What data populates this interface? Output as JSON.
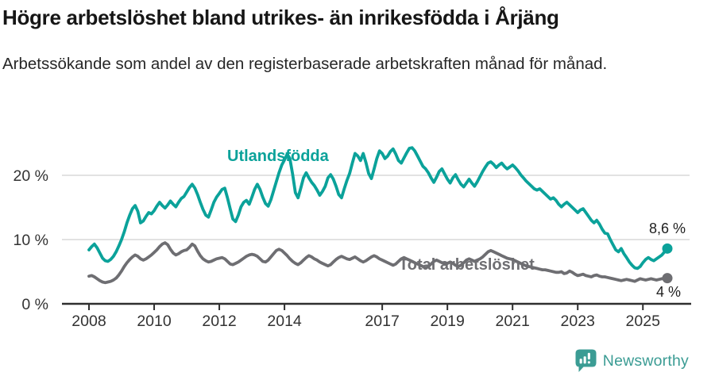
{
  "chart_data": {
    "type": "line",
    "title": "Högre arbetslöshet bland utrikes- än inrikesfödda i Årjäng",
    "subtitle": "Arbetssökande som andel av den registerbaserade arbetskraften månad för månad.",
    "unit": "%",
    "x_start": "2008-01",
    "x_end": "2025-10",
    "x_frequency": "monthly",
    "ylim": [
      0,
      26
    ],
    "y_ticks": [
      0,
      10,
      20
    ],
    "y_tick_labels": [
      "0 %",
      "10 %",
      "20 %"
    ],
    "x_tick_years": [
      2008,
      2010,
      2012,
      2014,
      2017,
      2019,
      2021,
      2023,
      2025
    ],
    "grid": "horizontal-only",
    "legend": "inline-series-labels",
    "axis_color": "#2f2f2f",
    "gridline_color": "#d8d8d8",
    "tick_label_color": "#333333",
    "series": [
      {
        "name": "Utlandsfödda",
        "color": "#0ba29a",
        "end_label": "8,6 %",
        "end_value": 8.6,
        "values": [
          8.4,
          8.9,
          9.3,
          8.7,
          7.9,
          7.1,
          6.7,
          6.6,
          6.9,
          7.4,
          8.1,
          9.0,
          10.0,
          11.2,
          12.6,
          13.8,
          14.8,
          15.3,
          14.4,
          12.6,
          12.9,
          13.6,
          14.2,
          14.0,
          14.5,
          15.2,
          15.8,
          15.3,
          14.9,
          15.4,
          16.0,
          15.5,
          15.1,
          15.8,
          16.4,
          16.7,
          17.4,
          18.1,
          18.6,
          18.0,
          17.0,
          15.8,
          14.7,
          13.8,
          13.5,
          14.6,
          15.8,
          16.6,
          17.2,
          17.8,
          18.0,
          16.5,
          14.8,
          13.2,
          12.8,
          13.8,
          15.1,
          15.8,
          16.1,
          15.5,
          16.6,
          17.8,
          18.6,
          17.8,
          16.6,
          15.6,
          15.2,
          16.2,
          17.6,
          19.0,
          20.4,
          21.6,
          22.4,
          23.3,
          22.6,
          20.2,
          17.3,
          16.5,
          18.0,
          19.6,
          20.4,
          19.6,
          18.9,
          18.4,
          17.7,
          16.9,
          17.5,
          18.3,
          19.6,
          20.1,
          19.4,
          18.3,
          17.0,
          16.5,
          17.9,
          19.2,
          20.3,
          21.9,
          23.4,
          23.0,
          22.3,
          23.4,
          22.0,
          20.3,
          19.5,
          21.0,
          22.6,
          23.8,
          23.4,
          22.6,
          23.0,
          23.7,
          24.1,
          23.3,
          22.3,
          21.9,
          22.7,
          23.5,
          24.2,
          24.3,
          23.8,
          23.0,
          22.2,
          21.4,
          21.0,
          20.4,
          19.6,
          18.9,
          19.7,
          20.6,
          21.0,
          20.2,
          19.4,
          18.8,
          19.6,
          20.1,
          19.3,
          18.6,
          18.2,
          18.8,
          19.4,
          18.8,
          18.3,
          19.0,
          19.8,
          20.6,
          21.3,
          21.9,
          22.1,
          21.7,
          21.2,
          21.6,
          21.9,
          21.4,
          21.0,
          21.3,
          21.6,
          21.2,
          20.7,
          20.1,
          19.6,
          19.1,
          18.7,
          18.3,
          17.9,
          17.7,
          17.9,
          17.5,
          17.1,
          16.7,
          16.3,
          16.5,
          16.1,
          15.5,
          15.1,
          15.5,
          15.8,
          15.4,
          15.0,
          14.6,
          14.2,
          14.6,
          14.8,
          14.2,
          13.6,
          13.0,
          12.6,
          13.0,
          12.4,
          11.6,
          11.0,
          10.9,
          10.0,
          9.2,
          8.4,
          8.1,
          8.6,
          7.8,
          7.2,
          6.5,
          6.0,
          5.6,
          5.5,
          5.8,
          6.4,
          6.9,
          7.2,
          6.9,
          6.7,
          7.0,
          7.3,
          7.6,
          8.1,
          8.6
        ]
      },
      {
        "name": "Total arbetslöshet",
        "color": "#6e6e72",
        "end_label": "4 %",
        "end_value": 4.0,
        "values": [
          4.3,
          4.4,
          4.2,
          3.9,
          3.6,
          3.4,
          3.3,
          3.4,
          3.5,
          3.7,
          4.0,
          4.5,
          5.1,
          5.8,
          6.4,
          6.9,
          7.3,
          7.6,
          7.4,
          7.0,
          6.8,
          7.0,
          7.3,
          7.6,
          8.0,
          8.4,
          8.9,
          9.3,
          9.5,
          9.2,
          8.5,
          7.9,
          7.6,
          7.8,
          8.1,
          8.3,
          8.4,
          8.8,
          9.3,
          9.0,
          8.2,
          7.5,
          7.0,
          6.7,
          6.5,
          6.6,
          6.8,
          7.0,
          7.1,
          7.2,
          7.0,
          6.6,
          6.2,
          6.1,
          6.3,
          6.5,
          6.8,
          7.1,
          7.4,
          7.6,
          7.7,
          7.6,
          7.4,
          7.0,
          6.6,
          6.5,
          6.8,
          7.3,
          7.8,
          8.3,
          8.5,
          8.3,
          7.9,
          7.5,
          7.0,
          6.6,
          6.3,
          6.1,
          6.4,
          6.8,
          7.2,
          7.5,
          7.3,
          7.0,
          6.8,
          6.5,
          6.3,
          6.1,
          5.9,
          6.1,
          6.5,
          6.9,
          7.2,
          7.4,
          7.2,
          7.0,
          6.9,
          7.1,
          7.3,
          7.0,
          6.7,
          6.5,
          6.7,
          7.0,
          7.3,
          7.5,
          7.3,
          7.0,
          6.8,
          6.6,
          6.4,
          6.2,
          6.0,
          6.2,
          6.6,
          7.0,
          7.2,
          7.0,
          6.8,
          6.6,
          6.4,
          6.2,
          6.0,
          5.8,
          5.6,
          5.8,
          6.2,
          6.6,
          6.8,
          6.6,
          6.4,
          6.2,
          6.3,
          6.5,
          6.3,
          6.0,
          5.8,
          6.0,
          6.4,
          6.8,
          7.0,
          6.8,
          6.6,
          6.8,
          7.0,
          7.3,
          7.7,
          8.1,
          8.3,
          8.1,
          7.9,
          7.7,
          7.5,
          7.3,
          7.1,
          7.0,
          6.9,
          6.7,
          6.5,
          6.3,
          6.1,
          5.9,
          5.8,
          5.7,
          5.6,
          5.5,
          5.4,
          5.3,
          5.3,
          5.2,
          5.1,
          5.0,
          4.9,
          4.9,
          5.0,
          4.7,
          4.8,
          5.1,
          4.9,
          4.6,
          4.4,
          4.5,
          4.6,
          4.4,
          4.3,
          4.2,
          4.4,
          4.5,
          4.3,
          4.2,
          4.2,
          4.1,
          4.0,
          3.9,
          3.8,
          3.7,
          3.6,
          3.7,
          3.8,
          3.7,
          3.6,
          3.5,
          3.7,
          3.9,
          3.8,
          3.7,
          3.8,
          3.9,
          3.8,
          3.7,
          3.8,
          3.9,
          4.0,
          4.0
        ]
      }
    ]
  },
  "footer": {
    "brand": "Newsworthy",
    "brand_color": "#3b9c94",
    "logo_icon": "bar-chart-speech-bubble-icon"
  }
}
